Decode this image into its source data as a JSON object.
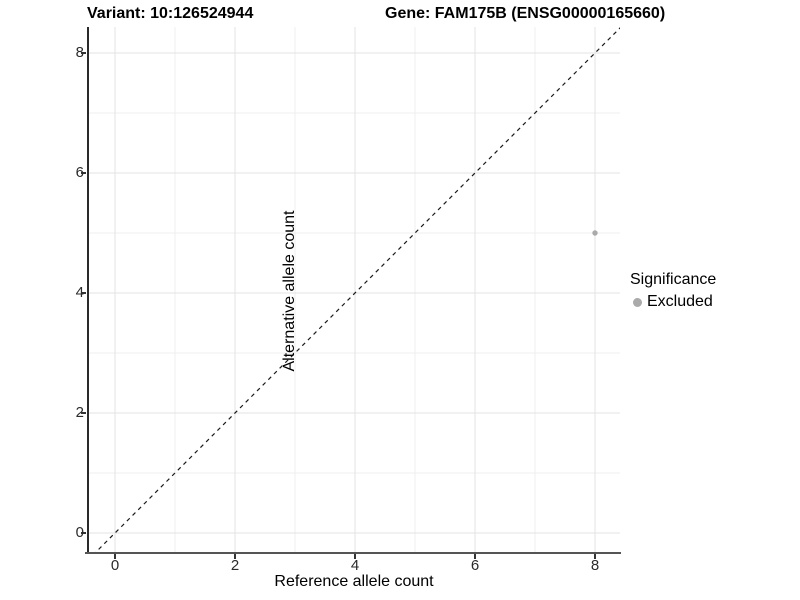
{
  "titles": {
    "variant": "Variant: 10:126524944",
    "gene": "Gene: FAM175B (ENSG00000165660)"
  },
  "chart_data": {
    "type": "scatter",
    "xlabel": "Reference allele count",
    "ylabel": "Alternative allele count",
    "xlim": [
      -0.45,
      8.42
    ],
    "ylim": [
      -0.33,
      8.43
    ],
    "x_ticks": [
      0,
      2,
      4,
      6,
      8
    ],
    "y_ticks": [
      0,
      2,
      4,
      6,
      8
    ],
    "x_minor_ticks": [
      1,
      3,
      5,
      7
    ],
    "y_minor_ticks": [
      1,
      3,
      5,
      7
    ],
    "grid": true,
    "identity_line": {
      "style": "dashed",
      "slope": 1,
      "intercept": 0
    },
    "points": [
      {
        "x": 8,
        "y": 5,
        "significance": "Excluded"
      }
    ],
    "legend": {
      "title": "Significance",
      "position": "right",
      "entries": [
        {
          "label": "Excluded",
          "color": "#aaaaaa"
        }
      ]
    }
  },
  "colors": {
    "point": "#aaaaaa",
    "major_grid": "#e3e3e3",
    "minor_grid": "#efefef",
    "identity_line": "#1a1a1a",
    "background": "#ffffff"
  }
}
